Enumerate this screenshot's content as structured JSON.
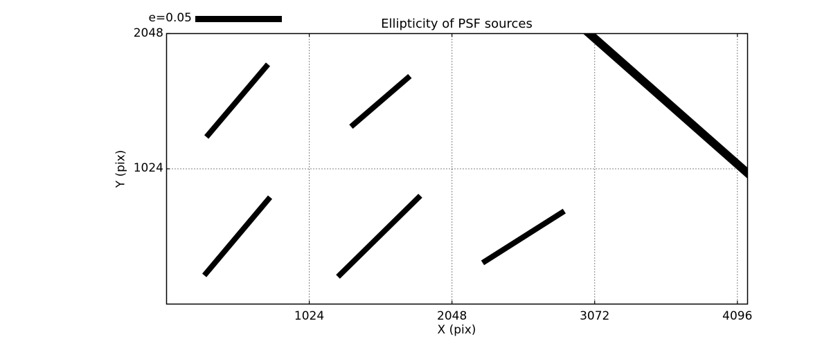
{
  "chart_data": {
    "type": "whisker",
    "title": "Ellipticity of PSF sources",
    "xlabel": "X (pix)",
    "ylabel": "Y (pix)",
    "legend_label": "e=0.05",
    "legend_scale_e": 0.05,
    "xlim": [
      0,
      4169
    ],
    "ylim": [
      0,
      2048
    ],
    "xticks": [
      1024,
      2048,
      3072,
      4096
    ],
    "yticks": [
      1024,
      2048
    ],
    "grid": "dotted",
    "foreground": "#000000",
    "background": "#ffffff",
    "segments": [
      {
        "x1": 286,
        "y1": 1265,
        "x2": 728,
        "y2": 1815,
        "lw": 8
      },
      {
        "x1": 1324,
        "y1": 1343,
        "x2": 1746,
        "y2": 1726,
        "lw": 8
      },
      {
        "x1": 271,
        "y1": 217,
        "x2": 743,
        "y2": 809,
        "lw": 8
      },
      {
        "x1": 1230,
        "y1": 207,
        "x2": 1821,
        "y2": 820,
        "lw": 8
      },
      {
        "x1": 2268,
        "y1": 312,
        "x2": 2854,
        "y2": 704,
        "lw": 8
      },
      {
        "x1": 2934,
        "y1": 2140,
        "x2": 4235,
        "y2": 930,
        "lw": 12
      }
    ]
  }
}
